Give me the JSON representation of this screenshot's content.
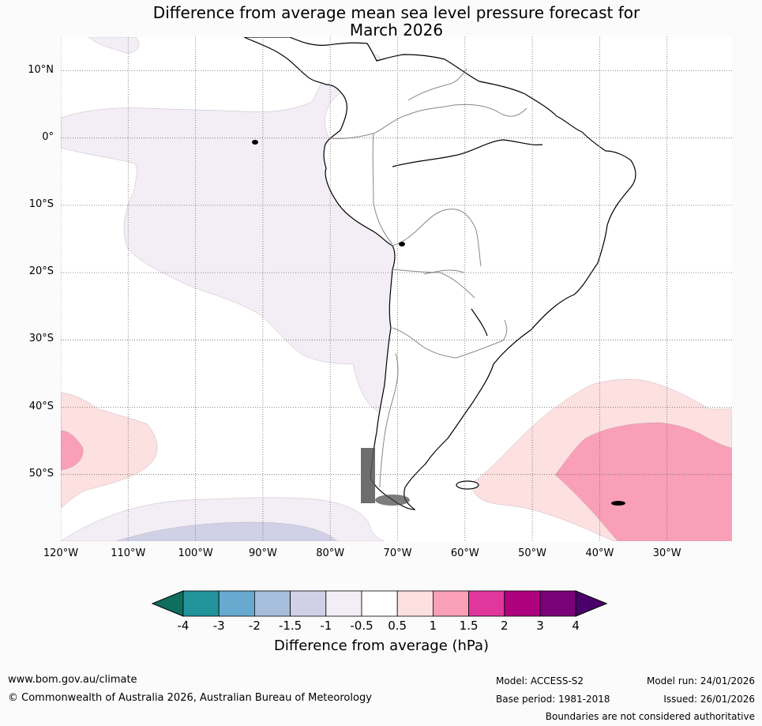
{
  "title": {
    "line1": "Difference from average mean sea level pressure forecast for",
    "line2": "March 2026"
  },
  "map": {
    "lat_labels": [
      "10°N",
      "0°",
      "10°S",
      "20°S",
      "30°S",
      "40°S",
      "50°S"
    ],
    "lon_labels": [
      "120°W",
      "110°W",
      "100°W",
      "90°W",
      "80°W",
      "70°W",
      "60°W",
      "50°W",
      "40°W",
      "30°W"
    ],
    "colors": {
      "ocean": "#ffffff",
      "anomaly_neg_0_5_to_1": "#f3eef6",
      "anomaly_neg_1_to_1_5": "#d0d1e6",
      "anomaly_pos_0_5_to_1": "#fde0e0",
      "anomaly_pos_1_to_1_5": "#f99fb8",
      "coastline": "#000000",
      "borders": "#888888",
      "grid": "#666666"
    }
  },
  "colorbar": {
    "ticks": [
      "-4",
      "-3",
      "-2",
      "-1.5",
      "-1",
      "-0.5",
      "0.5",
      "1",
      "1.5",
      "2",
      "3",
      "4"
    ],
    "colors": [
      "#0f6e5d",
      "#21939a",
      "#67a9cf",
      "#a6bddb",
      "#d0d1e6",
      "#f3eef6",
      "#ffffff",
      "#fde0e0",
      "#f99fb8",
      "#e0379c",
      "#ae017e",
      "#7a0177",
      "#49006a"
    ],
    "label": "Difference from average (hPa)"
  },
  "footer": {
    "website": "www.bom.gov.au/climate",
    "copyright": "© Commonwealth of Australia 2026, Australian Bureau of Meteorology",
    "model": "Model: ACCESS-S2",
    "base_period": "Base period: 1981-2018",
    "model_run": "Model run: 24/01/2026",
    "issued": "Issued: 26/01/2026",
    "disclaimer": "Boundaries are not considered authoritative"
  }
}
